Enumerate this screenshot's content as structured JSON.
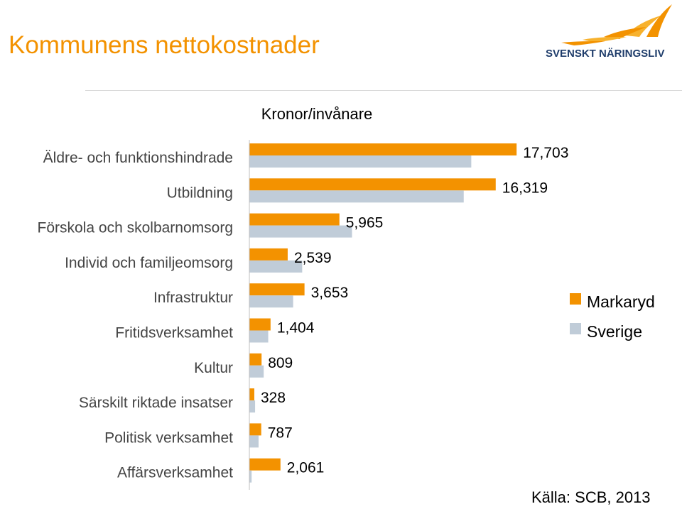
{
  "page": {
    "title": "Kommunens nettokostnader",
    "logo_text": "SVENSKT NÄRINGSLIV",
    "source": "Källa: SCB, 2013"
  },
  "colors": {
    "markaryd": "#f39200",
    "sverige": "#c0ccd8",
    "title": "#f39200",
    "logo_text": "#1f3d6b"
  },
  "chart_data": {
    "type": "bar",
    "orientation": "horizontal",
    "title": "Kronor/invånare",
    "categories": [
      "Äldre- och funktionshindrade",
      "Utbildning",
      "Förskola och skolbarnomsorg",
      "Individ och familjeomsorg",
      "Infrastruktur",
      "Fritidsverksamhet",
      "Kultur",
      "Särskilt riktade insatser",
      "Politisk verksamhet",
      "Affärsverksamhet"
    ],
    "series": [
      {
        "name": "Markaryd",
        "values": [
          17703,
          16319,
          5965,
          2539,
          3653,
          1404,
          809,
          328,
          787,
          2061
        ]
      },
      {
        "name": "Sverige",
        "values": [
          14700,
          14200,
          6800,
          3500,
          2900,
          1250,
          950,
          380,
          610,
          150
        ]
      }
    ],
    "data_labels": [
      "17,703",
      "16,319",
      "5,965",
      "2,539",
      "3,653",
      "1,404",
      "809",
      "328",
      "787",
      "2,061"
    ],
    "xlim": [
      0,
      20000
    ],
    "grid": false,
    "legend_position": "right"
  }
}
